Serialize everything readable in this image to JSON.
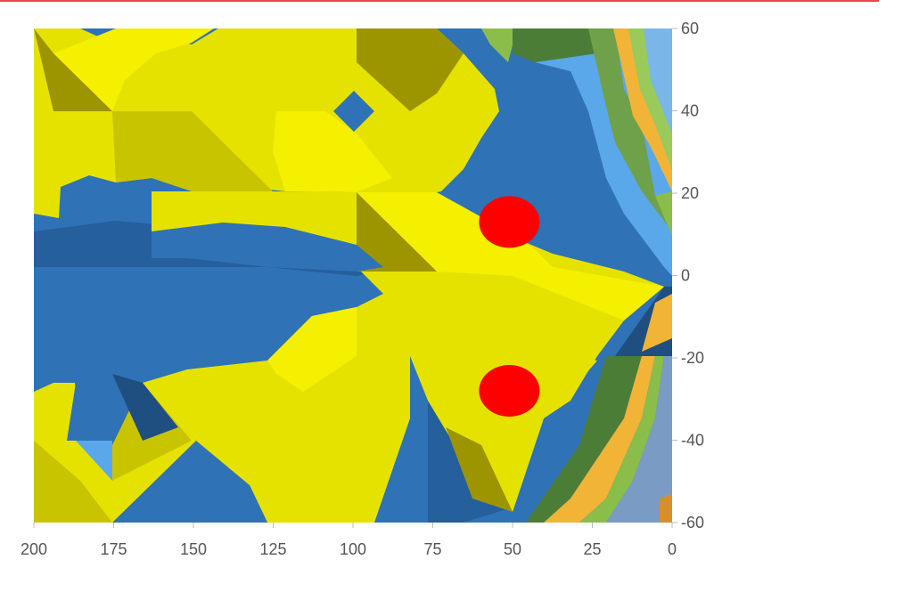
{
  "colors": {
    "rule": "#e8474c",
    "marker": "#ff0000",
    "tick_text": "#555555",
    "yellow_light": "#f4f000",
    "yellow": "#e6e200",
    "yellow_dark": "#c9c400",
    "olive": "#9c9500",
    "blue_light": "#3d86cc",
    "blue": "#2f72b5",
    "blue_dark": "#1f4f80",
    "sky": "#5aa8ea",
    "green": "#8bbd4b",
    "green_dark": "#4c7d36",
    "orange": "#f2b436",
    "gray_blue": "#7a9cc4"
  },
  "chart_data": {
    "type": "heatmap",
    "title": "",
    "xlabel": "",
    "ylabel": "",
    "xlim": [
      200,
      0
    ],
    "ylim": [
      -60,
      60
    ],
    "x_ticks": [
      "200",
      "175",
      "150",
      "125",
      "100",
      "75",
      "50",
      "25",
      "0"
    ],
    "y_ticks": [
      "60",
      "40",
      "20",
      "0",
      "-20",
      "-40",
      "-60"
    ],
    "y_axis_position": "right",
    "grid": false,
    "legend": "none",
    "markers": [
      {
        "x": 51,
        "y": 13
      },
      {
        "x": 51,
        "y": -28
      }
    ]
  }
}
